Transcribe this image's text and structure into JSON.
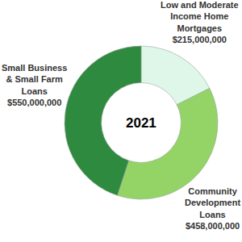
{
  "chart_data": {
    "type": "pie",
    "title": "2021",
    "categories": [
      "Low and Moderate Income Home Mortgages",
      "Community Development Loans",
      "Small Business & Small Farm Loans"
    ],
    "values": [
      215000000,
      458000000,
      550000000
    ],
    "value_labels": [
      "$215,000,000",
      "$458,000,000",
      "$550,000,000"
    ],
    "colors": [
      "#dff7e8",
      "#94d467",
      "#2e8a3e"
    ],
    "data_labels": true
  }
}
